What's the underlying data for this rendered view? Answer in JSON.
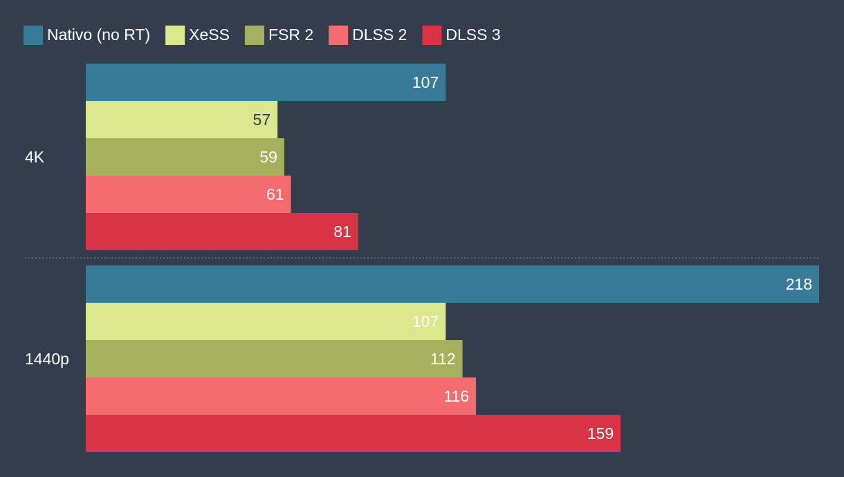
{
  "chart_data": {
    "type": "bar",
    "orientation": "horizontal",
    "categories": [
      "4K",
      "1440p"
    ],
    "series": [
      {
        "name": "Nativo (no RT)",
        "values": [
          107,
          218
        ],
        "color": "#377b98"
      },
      {
        "name": "XeSS",
        "values": [
          57,
          107
        ],
        "color": "#dbe88d"
      },
      {
        "name": "FSR 2",
        "values": [
          59,
          112
        ],
        "color": "#a5b15c"
      },
      {
        "name": "DLSS 2",
        "values": [
          61,
          116
        ],
        "color": "#f56c70"
      },
      {
        "name": "DLSS 3",
        "values": [
          81,
          159
        ],
        "color": "#d83445"
      }
    ],
    "xlim": [
      0,
      218
    ],
    "legend_position": "top-left",
    "grid": false,
    "background": "#333d4d",
    "text_color": "#ffffff",
    "dark_label_color": "#333d4d"
  }
}
